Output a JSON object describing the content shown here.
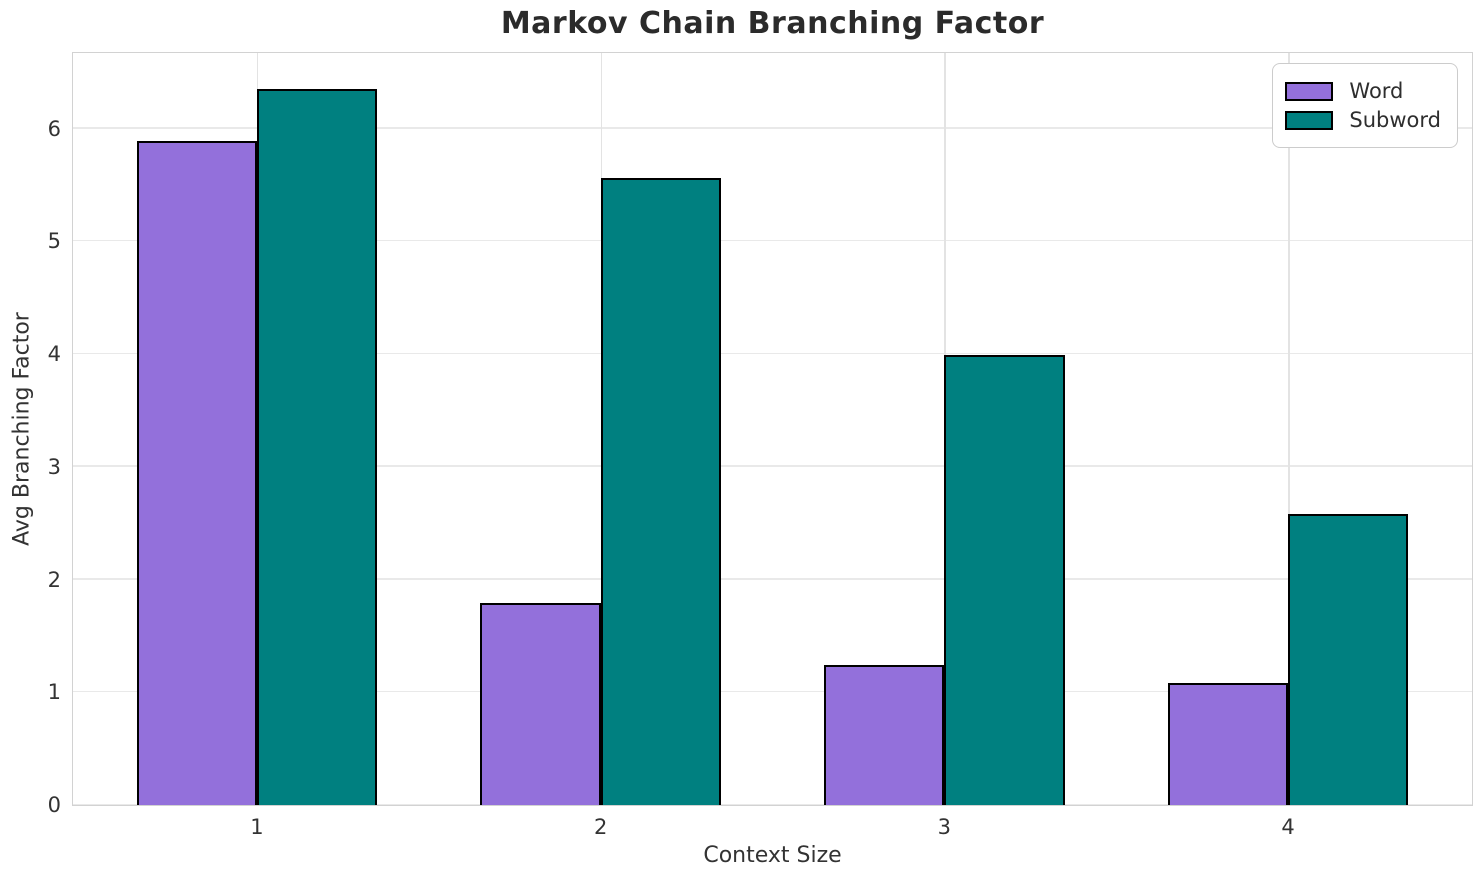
{
  "chart_data": {
    "type": "bar",
    "title": "Markov Chain Branching Factor",
    "xlabel": "Context Size",
    "ylabel": "Avg Branching Factor",
    "categories": [
      "1",
      "2",
      "3",
      "4"
    ],
    "series": [
      {
        "name": "Word",
        "color": "#9370DB",
        "values": [
          5.89,
          1.79,
          1.24,
          1.08
        ]
      },
      {
        "name": "Subword",
        "color": "#008080",
        "values": [
          6.35,
          5.56,
          3.99,
          2.58
        ]
      }
    ],
    "ylim": [
      0,
      6.67
    ],
    "xlim": [
      0.465,
      4.535
    ],
    "yticks": [
      0,
      1,
      2,
      3,
      4,
      5,
      6
    ],
    "bar_width_data_units": 0.35,
    "bar_edge_color": "#000000",
    "grid": true,
    "legend": {
      "position": "upper right"
    },
    "colors": {
      "background": "#ffffff",
      "grid": "#e9e9e9",
      "spine": "#d2d2d2",
      "text": "#333333",
      "title": "#2b2b2b"
    }
  }
}
